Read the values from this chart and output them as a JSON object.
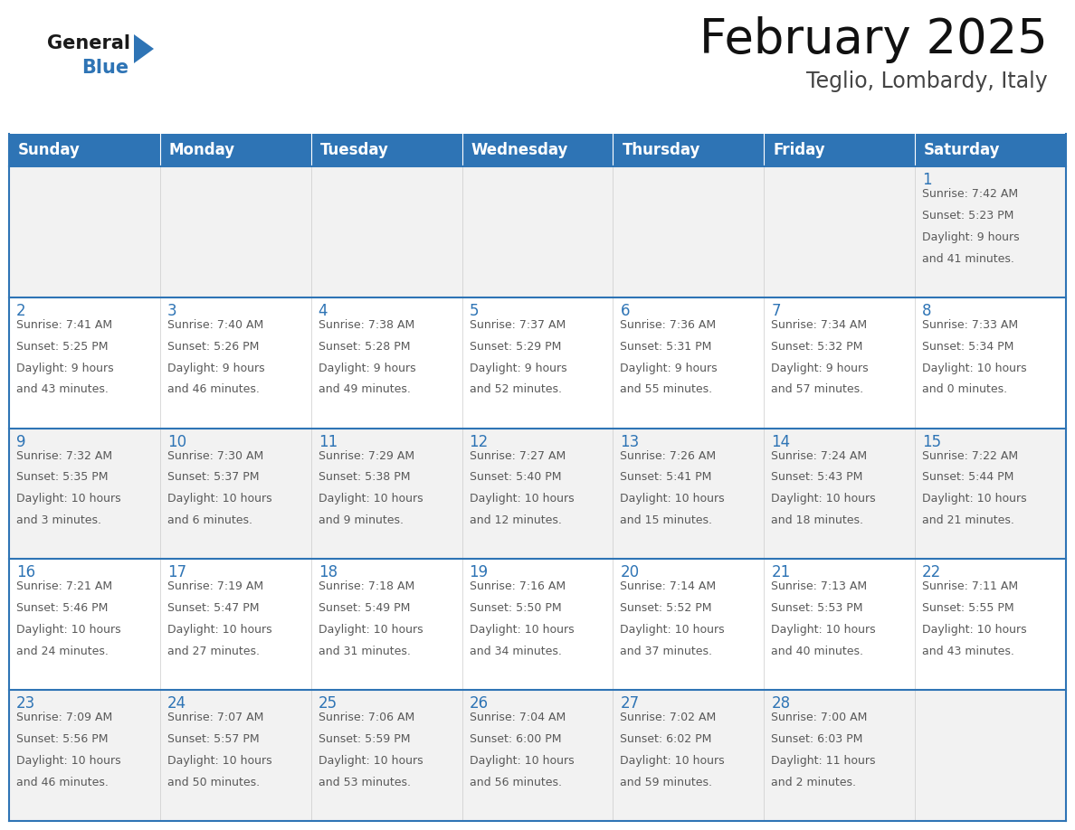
{
  "title": "February 2025",
  "subtitle": "Teglio, Lombardy, Italy",
  "header_bg": "#2E74B5",
  "header_text_color": "#FFFFFF",
  "cell_border_color": "#2E74B5",
  "day_number_color": "#2E74B5",
  "info_text_color": "#595959",
  "bg_color": "#FFFFFF",
  "row_alt_bg": "#F2F2F2",
  "days_of_week": [
    "Sunday",
    "Monday",
    "Tuesday",
    "Wednesday",
    "Thursday",
    "Friday",
    "Saturday"
  ],
  "calendar_data": [
    [
      null,
      null,
      null,
      null,
      null,
      null,
      {
        "day": 1,
        "sunrise": "7:42 AM",
        "sunset": "5:23 PM",
        "daylight": "9 hours\nand 41 minutes."
      }
    ],
    [
      {
        "day": 2,
        "sunrise": "7:41 AM",
        "sunset": "5:25 PM",
        "daylight": "9 hours\nand 43 minutes."
      },
      {
        "day": 3,
        "sunrise": "7:40 AM",
        "sunset": "5:26 PM",
        "daylight": "9 hours\nand 46 minutes."
      },
      {
        "day": 4,
        "sunrise": "7:38 AM",
        "sunset": "5:28 PM",
        "daylight": "9 hours\nand 49 minutes."
      },
      {
        "day": 5,
        "sunrise": "7:37 AM",
        "sunset": "5:29 PM",
        "daylight": "9 hours\nand 52 minutes."
      },
      {
        "day": 6,
        "sunrise": "7:36 AM",
        "sunset": "5:31 PM",
        "daylight": "9 hours\nand 55 minutes."
      },
      {
        "day": 7,
        "sunrise": "7:34 AM",
        "sunset": "5:32 PM",
        "daylight": "9 hours\nand 57 minutes."
      },
      {
        "day": 8,
        "sunrise": "7:33 AM",
        "sunset": "5:34 PM",
        "daylight": "10 hours\nand 0 minutes."
      }
    ],
    [
      {
        "day": 9,
        "sunrise": "7:32 AM",
        "sunset": "5:35 PM",
        "daylight": "10 hours\nand 3 minutes."
      },
      {
        "day": 10,
        "sunrise": "7:30 AM",
        "sunset": "5:37 PM",
        "daylight": "10 hours\nand 6 minutes."
      },
      {
        "day": 11,
        "sunrise": "7:29 AM",
        "sunset": "5:38 PM",
        "daylight": "10 hours\nand 9 minutes."
      },
      {
        "day": 12,
        "sunrise": "7:27 AM",
        "sunset": "5:40 PM",
        "daylight": "10 hours\nand 12 minutes."
      },
      {
        "day": 13,
        "sunrise": "7:26 AM",
        "sunset": "5:41 PM",
        "daylight": "10 hours\nand 15 minutes."
      },
      {
        "day": 14,
        "sunrise": "7:24 AM",
        "sunset": "5:43 PM",
        "daylight": "10 hours\nand 18 minutes."
      },
      {
        "day": 15,
        "sunrise": "7:22 AM",
        "sunset": "5:44 PM",
        "daylight": "10 hours\nand 21 minutes."
      }
    ],
    [
      {
        "day": 16,
        "sunrise": "7:21 AM",
        "sunset": "5:46 PM",
        "daylight": "10 hours\nand 24 minutes."
      },
      {
        "day": 17,
        "sunrise": "7:19 AM",
        "sunset": "5:47 PM",
        "daylight": "10 hours\nand 27 minutes."
      },
      {
        "day": 18,
        "sunrise": "7:18 AM",
        "sunset": "5:49 PM",
        "daylight": "10 hours\nand 31 minutes."
      },
      {
        "day": 19,
        "sunrise": "7:16 AM",
        "sunset": "5:50 PM",
        "daylight": "10 hours\nand 34 minutes."
      },
      {
        "day": 20,
        "sunrise": "7:14 AM",
        "sunset": "5:52 PM",
        "daylight": "10 hours\nand 37 minutes."
      },
      {
        "day": 21,
        "sunrise": "7:13 AM",
        "sunset": "5:53 PM",
        "daylight": "10 hours\nand 40 minutes."
      },
      {
        "day": 22,
        "sunrise": "7:11 AM",
        "sunset": "5:55 PM",
        "daylight": "10 hours\nand 43 minutes."
      }
    ],
    [
      {
        "day": 23,
        "sunrise": "7:09 AM",
        "sunset": "5:56 PM",
        "daylight": "10 hours\nand 46 minutes."
      },
      {
        "day": 24,
        "sunrise": "7:07 AM",
        "sunset": "5:57 PM",
        "daylight": "10 hours\nand 50 minutes."
      },
      {
        "day": 25,
        "sunrise": "7:06 AM",
        "sunset": "5:59 PM",
        "daylight": "10 hours\nand 53 minutes."
      },
      {
        "day": 26,
        "sunrise": "7:04 AM",
        "sunset": "6:00 PM",
        "daylight": "10 hours\nand 56 minutes."
      },
      {
        "day": 27,
        "sunrise": "7:02 AM",
        "sunset": "6:02 PM",
        "daylight": "10 hours\nand 59 minutes."
      },
      {
        "day": 28,
        "sunrise": "7:00 AM",
        "sunset": "6:03 PM",
        "daylight": "11 hours\nand 2 minutes."
      },
      null
    ]
  ],
  "logo_general_color": "#1a1a1a",
  "logo_blue_color": "#2E74B5",
  "title_fontsize": 38,
  "subtitle_fontsize": 17,
  "header_fontsize": 12,
  "day_number_fontsize": 12,
  "info_fontsize": 9.0,
  "fig_width": 11.88,
  "fig_height": 9.18,
  "dpi": 100
}
